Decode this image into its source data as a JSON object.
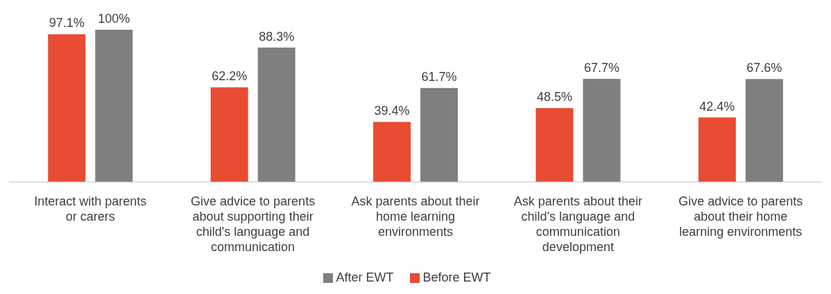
{
  "chart_data": {
    "type": "bar",
    "categories": [
      "Interact with parents or carers",
      "Give advice to parents about supporting their child's language and communication",
      "Ask parents about their home learning environments",
      "Ask parents about their child's language and communication development",
      "Give advice to parents about their home learning environments"
    ],
    "series": [
      {
        "name": "Before EWT",
        "color": "#e84c33",
        "values": [
          97.1,
          62.2,
          39.4,
          48.5,
          42.4
        ],
        "value_labels": [
          "97.1%",
          "62.2%",
          "39.4%",
          "48.5%",
          "42.4%"
        ]
      },
      {
        "name": "After EWT",
        "color": "#7f7f7f",
        "values": [
          100,
          88.3,
          61.7,
          67.7,
          67.6
        ],
        "value_labels": [
          "100%",
          "88.3%",
          "61.7%",
          "67.7%",
          "67.6%"
        ]
      }
    ],
    "ylim": [
      0,
      100
    ],
    "legend": "bottom",
    "grid": false
  }
}
